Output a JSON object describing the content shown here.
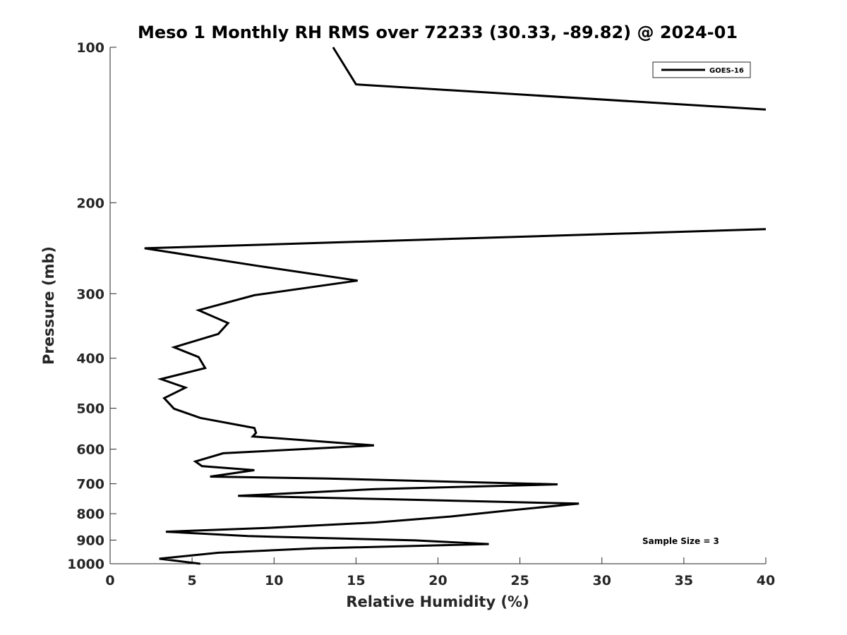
{
  "chart_data": {
    "type": "line",
    "title": "Meso 1 Monthly RH RMS over 72233 (30.33, -89.82) @ 2024-01",
    "xlabel": "Relative Humidity (%)",
    "ylabel": "Pressure (mb)",
    "xlim": [
      0,
      40
    ],
    "ylim": [
      100,
      1000
    ],
    "y_scale": "log",
    "y_reversed": true,
    "x_ticks": [
      0,
      5,
      10,
      15,
      20,
      25,
      30,
      35,
      40
    ],
    "x_tick_labels": [
      "0",
      "5",
      "10",
      "15",
      "20",
      "25",
      "30",
      "35",
      "40"
    ],
    "y_ticks": [
      100,
      200,
      300,
      400,
      500,
      600,
      700,
      800,
      900,
      1000
    ],
    "y_tick_labels": [
      "100",
      "200",
      "300",
      "400",
      "500",
      "600",
      "700",
      "800",
      "900",
      "1000"
    ],
    "grid": false,
    "legend_position": "top-right",
    "annotation": "Sample Size = 3",
    "series": [
      {
        "name": "GOES-16",
        "color": "#000000",
        "points": [
          [
            13.6,
            100
          ],
          [
            15.0,
            118
          ],
          [
            40.0,
            132
          ],
          null,
          [
            40.0,
            225
          ],
          [
            2.1,
            245
          ],
          [
            9.0,
            265
          ],
          [
            15.1,
            283
          ],
          [
            8.8,
            302
          ],
          [
            5.4,
            323
          ],
          [
            7.2,
            342
          ],
          [
            6.6,
            359
          ],
          [
            3.9,
            381
          ],
          [
            5.4,
            398
          ],
          [
            5.8,
            418
          ],
          [
            3.1,
            439
          ],
          [
            4.6,
            456
          ],
          [
            3.3,
            478
          ],
          [
            3.9,
            501
          ],
          [
            5.5,
            522
          ],
          [
            8.8,
            546
          ],
          [
            8.9,
            558
          ],
          [
            8.7,
            567
          ],
          [
            16.1,
            590
          ],
          [
            6.9,
            611
          ],
          [
            5.2,
            634
          ],
          [
            5.6,
            647
          ],
          [
            8.8,
            659
          ],
          [
            6.1,
            678
          ],
          [
            13.3,
            684
          ],
          [
            27.3,
            702
          ],
          [
            16.2,
            717
          ],
          [
            7.8,
            739
          ],
          [
            16.2,
            749
          ],
          [
            28.6,
            765
          ],
          [
            24.2,
            789
          ],
          [
            20.8,
            810
          ],
          [
            16.2,
            832
          ],
          [
            9.7,
            852
          ],
          [
            3.4,
            867
          ],
          [
            8.4,
            884
          ],
          [
            18.6,
            901
          ],
          [
            23.1,
            916
          ],
          [
            12.4,
            934
          ],
          [
            6.6,
            952
          ],
          [
            3.0,
            978
          ],
          [
            5.5,
            1000
          ]
        ]
      }
    ]
  }
}
